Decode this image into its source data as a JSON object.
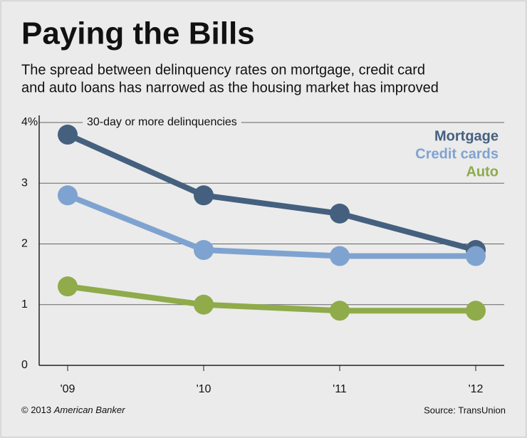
{
  "chart_data": {
    "type": "line",
    "title": "Paying the Bills",
    "subtitle": [
      "The spread between delinquency rates on mortgage, credit card",
      "and auto loans has narrowed as the housing market has improved"
    ],
    "annotation": "30-day or more delinquencies",
    "categories": [
      "'09",
      "'10",
      "'11",
      "'12"
    ],
    "series": [
      {
        "name": "Mortgage",
        "color": "#45607f",
        "values": [
          3.8,
          2.8,
          2.5,
          1.9
        ]
      },
      {
        "name": "Credit cards",
        "color": "#7fa3d0",
        "values": [
          2.8,
          1.9,
          1.8,
          1.8
        ]
      },
      {
        "name": "Auto",
        "color": "#8fab4a",
        "values": [
          1.3,
          1.0,
          0.9,
          0.9
        ]
      }
    ],
    "ylim": [
      0,
      4
    ],
    "yticks": [
      0,
      1,
      2,
      3,
      {
        "value": 4,
        "label": "4%"
      }
    ],
    "grid": true,
    "legend": "upper right",
    "copyright": "© 2013",
    "publisher": "American Banker",
    "source": "Source: TransUnion"
  }
}
